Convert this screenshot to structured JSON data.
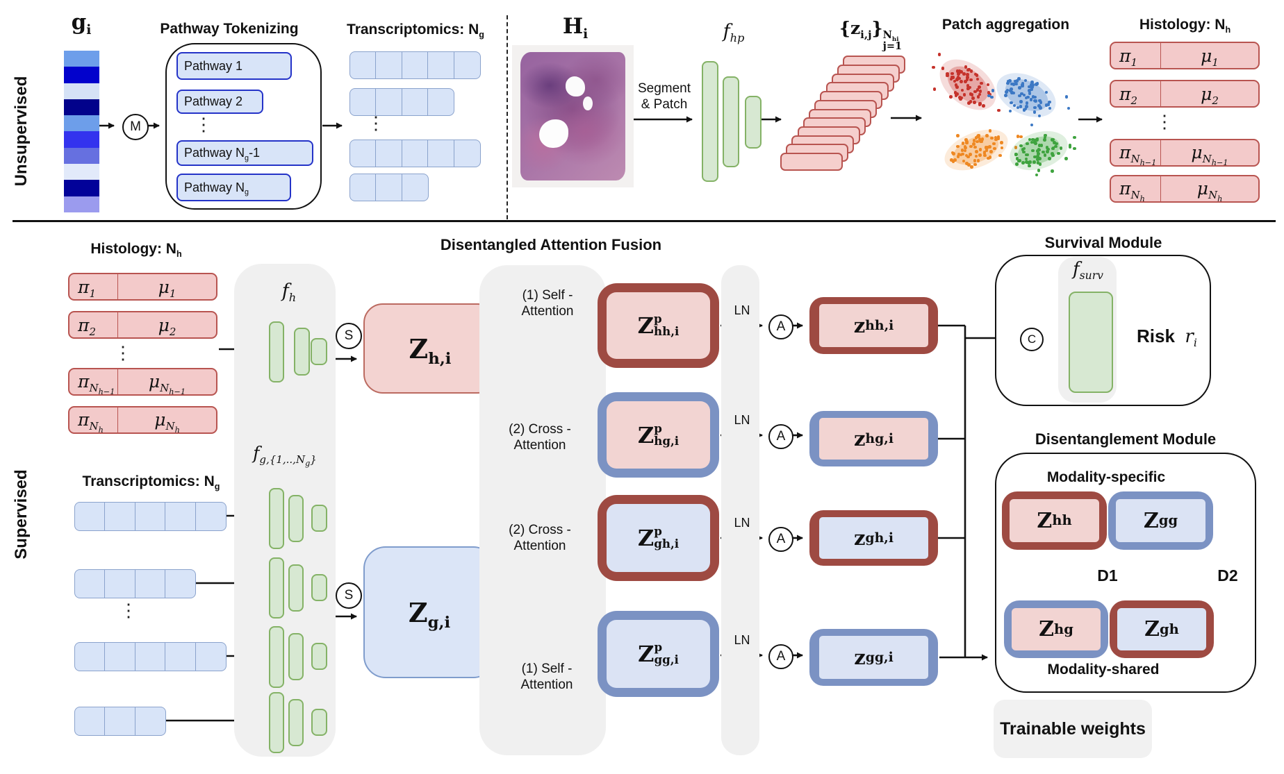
{
  "pi": "π",
  "mu": "μ",
  "colors": {
    "maroon": "#9e4a42",
    "slate_blue": "#7b92c3",
    "pink_fill": "#f2d4d2",
    "blue_fill": "#dbe3f4",
    "token_pink": "#f3caca",
    "pink_border": "#b85450",
    "cell_fill": "#d8e4f8",
    "cell_border": "#8aa2cc",
    "green_fill": "#d7e8d2",
    "green_border": "#84b266",
    "pathway_border": "#2433c8",
    "panel_gray": "#f0f0f0"
  },
  "sections": {
    "top_label": "Unsupervised",
    "bottom_label": "Supervised"
  },
  "unsupervised": {
    "gene_vector": {
      "base": "g",
      "sub": "i",
      "cells": [
        "#6d9eea",
        "#0202cc",
        "#d5e2f6",
        "#02028b",
        "#6d9eea",
        "#3333ee",
        "#6670e0",
        "#e2eafa",
        "#020299",
        "#9b9bee"
      ]
    },
    "m_node": "M",
    "pathway": {
      "title": "Pathway Tokenizing",
      "items": [
        {
          "pre": "Pathway 1",
          "sub": "",
          "post": ""
        },
        {
          "pre": "Pathway 2",
          "sub": "",
          "post": ""
        },
        {
          "pre": "Pathway N",
          "sub": "g",
          "post": "-1"
        },
        {
          "pre": "Pathway N",
          "sub": "g",
          "post": ""
        }
      ]
    },
    "transcriptomics": {
      "title_pre": "Transcriptomics: N",
      "title_sub": "g",
      "row_cells": [
        5,
        4,
        5,
        3
      ]
    },
    "histology_wsi": {
      "base": "H",
      "sub": "i"
    },
    "segment_patch": {
      "line1": "Segment",
      "line2": "& Patch"
    },
    "f_hp": {
      "base": "f",
      "sub": "hp"
    },
    "patch_set": {
      "open": "{",
      "base": "z",
      "sub": "i,j",
      "close": "}",
      "sup_base": "N",
      "sup_sub": "hi",
      "under": "j=1",
      "count": 12
    },
    "patch_aggregation": {
      "title": "Patch aggregation",
      "clusters": [
        {
          "name": "red",
          "color": "#c5322b"
        },
        {
          "name": "blue",
          "color": "#3c78c4"
        },
        {
          "name": "orange",
          "color": "#ee8822"
        },
        {
          "name": "green",
          "color": "#3fa33f"
        }
      ]
    },
    "histology_tokens": {
      "title_pre": "Histology: N",
      "title_sub": "h"
    }
  },
  "token_rows": [
    {
      "pi_sub": "1",
      "pi_subsub": "",
      "mu_sub": "1",
      "mu_subsub": ""
    },
    {
      "pi_sub": "2",
      "pi_subsub": "",
      "mu_sub": "2",
      "mu_subsub": ""
    },
    {
      "pi_sub": "N",
      "pi_subsub": "h−1",
      "mu_sub": "N",
      "mu_subsub": "h−1"
    },
    {
      "pi_sub": "N",
      "pi_subsub": "h",
      "mu_sub": "N",
      "mu_subsub": "h"
    }
  ],
  "supervised": {
    "histology_tokens": {
      "title_pre": "Histology: N",
      "title_sub": "h"
    },
    "transcriptomics": {
      "title_pre": "Transcriptomics: N",
      "title_sub": "g",
      "row_cells": [
        5,
        4,
        5,
        3
      ]
    },
    "f_h": {
      "base": "f",
      "sub": "h"
    },
    "f_g": {
      "base": "f",
      "sub1": "g,{1,..,N",
      "sub2": "g",
      "sub3": "}"
    },
    "s_node": "S",
    "z_h": {
      "base": "Z",
      "sub": "h,i"
    },
    "z_g": {
      "base": "Z",
      "sub": "g,i"
    },
    "fusion": {
      "title": "Disentangled Attention Fusion",
      "self_h": {
        "line1": "(1) Self -",
        "line2": "Attention"
      },
      "cross_1": {
        "line1": "(2) Cross -",
        "line2": "Attention"
      },
      "cross_2": {
        "line1": "(2) Cross -",
        "line2": "Attention"
      },
      "self_g": {
        "line1": "(1) Self -",
        "line2": "Attention"
      },
      "ln": "LN",
      "a_node": "A",
      "rows": [
        {
          "zp": {
            "base": "Z",
            "sup": "p",
            "sub": "hh,i"
          },
          "z": {
            "base": "z",
            "sub": "hh,i"
          },
          "ring": "#9e4a42",
          "fill": "#f2d4d2"
        },
        {
          "zp": {
            "base": "Z",
            "sup": "p",
            "sub": "hg,i"
          },
          "z": {
            "base": "z",
            "sub": "hg,i"
          },
          "ring": "#7b92c3",
          "fill": "#f2d4d2"
        },
        {
          "zp": {
            "base": "Z",
            "sup": "p",
            "sub": "gh,i"
          },
          "z": {
            "base": "z",
            "sub": "gh,i"
          },
          "ring": "#9e4a42",
          "fill": "#dbe3f4"
        },
        {
          "zp": {
            "base": "Z",
            "sup": "p",
            "sub": "gg,i"
          },
          "z": {
            "base": "z",
            "sub": "gg,i"
          },
          "ring": "#7b92c3",
          "fill": "#dbe3f4"
        }
      ]
    },
    "survival": {
      "title": "Survival Module",
      "f_surv": {
        "base": "f",
        "sub": "surv"
      },
      "c_node": "C",
      "risk": "Risk",
      "risk_var": {
        "base": "r",
        "sub": "i"
      }
    },
    "disentanglement": {
      "title": "Disentanglement Module",
      "specific": "Modality-specific",
      "shared": "Modality-shared",
      "d1": "D1",
      "d2": "D2",
      "blocks": [
        {
          "base": "Z",
          "sub": "hh",
          "ring": "#9e4a42",
          "fill": "#f2d4d2"
        },
        {
          "base": "Z",
          "sub": "gg",
          "ring": "#7b92c3",
          "fill": "#dbe3f4"
        },
        {
          "base": "Z",
          "sub": "hg",
          "ring": "#7b92c3",
          "fill": "#f2d4d2"
        },
        {
          "base": "Z",
          "sub": "gh",
          "ring": "#9e4a42",
          "fill": "#dbe3f4"
        }
      ]
    },
    "trainable_weights": "Trainable weights"
  }
}
